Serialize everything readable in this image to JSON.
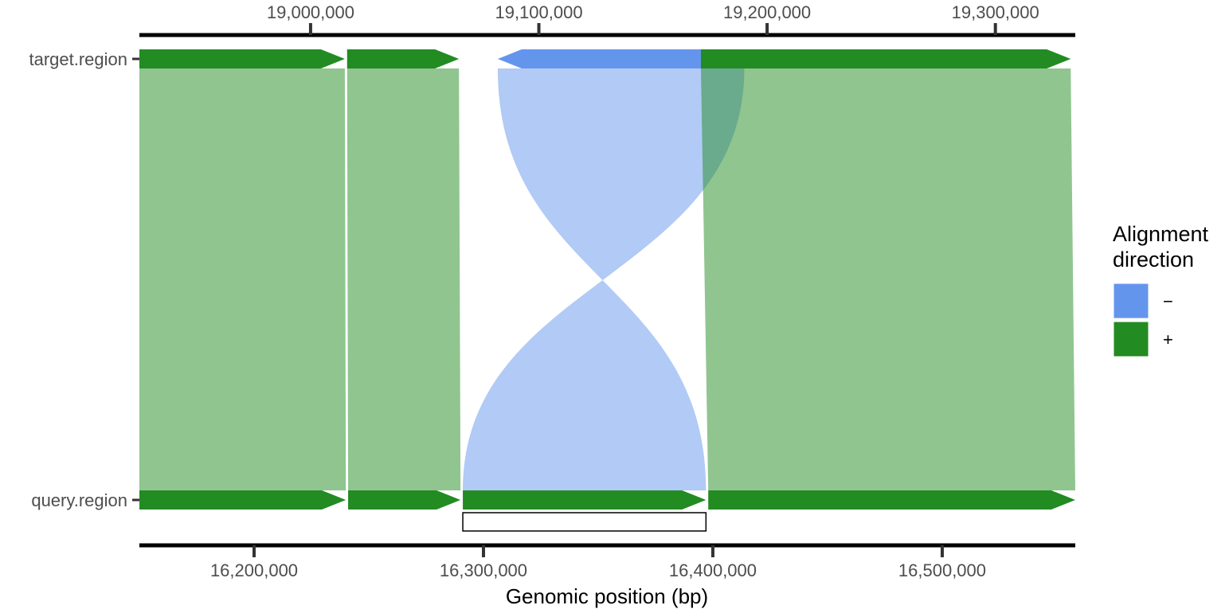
{
  "chart_data": {
    "type": "synteny",
    "xlabel": "Genomic position (bp)",
    "tracks": [
      {
        "name": "target.region",
        "axis": "top",
        "xlim": [
          18925000,
          19335000
        ],
        "ticks": [
          19000000,
          19100000,
          19200000,
          19300000
        ],
        "tick_labels": [
          "19,000,000",
          "19,100,000",
          "19,200,000",
          "19,300,000"
        ]
      },
      {
        "name": "query.region",
        "axis": "bottom",
        "xlim": [
          16150000,
          16558000
        ],
        "ticks": [
          16200000,
          16300000,
          16400000,
          16500000
        ],
        "tick_labels": [
          "16,200,000",
          "16,300,000",
          "16,400,000",
          "16,500,000"
        ]
      }
    ],
    "alignments": [
      {
        "direction": "+",
        "target": [
          18925000,
          19015000
        ],
        "query": [
          16150000,
          16240000
        ]
      },
      {
        "direction": "+",
        "target": [
          19016000,
          19065000
        ],
        "query": [
          16241000,
          16290000
        ]
      },
      {
        "direction": "-",
        "target": [
          19082000,
          19190000
        ],
        "query": [
          16291000,
          16397000
        ]
      },
      {
        "direction": "+",
        "target": [
          19171000,
          19333000
        ],
        "query": [
          16398000,
          16558000
        ]
      }
    ],
    "highlight": {
      "track": "query.region",
      "range": [
        16291000,
        16397000
      ]
    },
    "colors": {
      "plus": "#228B22",
      "minus": "#6495ED"
    },
    "legend": {
      "title_lines": [
        "Alignment",
        "direction"
      ],
      "position": "right",
      "entries": [
        {
          "label": "−",
          "direction": "-"
        },
        {
          "label": "+",
          "direction": "+"
        }
      ]
    }
  }
}
